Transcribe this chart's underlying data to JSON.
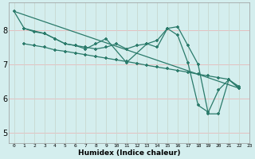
{
  "xlabel": "Humidex (Indice chaleur)",
  "bg_color": "#d4eeee",
  "line_color": "#2a7a6a",
  "grid_color_h": "#e8b8b8",
  "grid_color_v": "#c8d8d0",
  "xlim": [
    -0.5,
    23
  ],
  "ylim": [
    4.7,
    8.8
  ],
  "xticks": [
    0,
    1,
    2,
    3,
    4,
    5,
    6,
    7,
    8,
    9,
    10,
    11,
    12,
    13,
    14,
    15,
    16,
    17,
    18,
    19,
    20,
    21,
    22,
    23
  ],
  "yticks": [
    5,
    6,
    7,
    8
  ],
  "line1_x": [
    0,
    1,
    3,
    4,
    5,
    6,
    7,
    8,
    9,
    11,
    13,
    14,
    15,
    16,
    17,
    18,
    19,
    20,
    21,
    22
  ],
  "line1_y": [
    8.55,
    8.05,
    7.9,
    7.75,
    7.6,
    7.55,
    7.45,
    7.6,
    7.75,
    7.05,
    7.6,
    7.5,
    8.05,
    7.85,
    7.05,
    5.8,
    5.6,
    6.25,
    6.55,
    6.3
  ],
  "line2_x": [
    1,
    2,
    3,
    4,
    5,
    6,
    7,
    8,
    9,
    10,
    11,
    12,
    13,
    14,
    15,
    16,
    17,
    18,
    19,
    20,
    21,
    22
  ],
  "line2_y": [
    7.6,
    7.55,
    7.5,
    7.42,
    7.38,
    7.33,
    7.28,
    7.23,
    7.18,
    7.13,
    7.08,
    7.03,
    6.97,
    6.92,
    6.87,
    6.82,
    6.77,
    6.71,
    6.66,
    6.61,
    6.56,
    6.3
  ],
  "line3_x": [
    0,
    22
  ],
  "line3_y": [
    8.55,
    6.3
  ],
  "line4_x": [
    1,
    2,
    3,
    4,
    5,
    6,
    7,
    8,
    9,
    10,
    11,
    12,
    13,
    14,
    15,
    16,
    17,
    18,
    19,
    20,
    21,
    22
  ],
  "line4_y": [
    8.05,
    7.95,
    7.9,
    7.75,
    7.6,
    7.55,
    7.5,
    7.45,
    7.5,
    7.6,
    7.45,
    7.55,
    7.6,
    7.7,
    8.05,
    8.1,
    7.55,
    7.0,
    5.55,
    5.55,
    6.55,
    6.35
  ]
}
